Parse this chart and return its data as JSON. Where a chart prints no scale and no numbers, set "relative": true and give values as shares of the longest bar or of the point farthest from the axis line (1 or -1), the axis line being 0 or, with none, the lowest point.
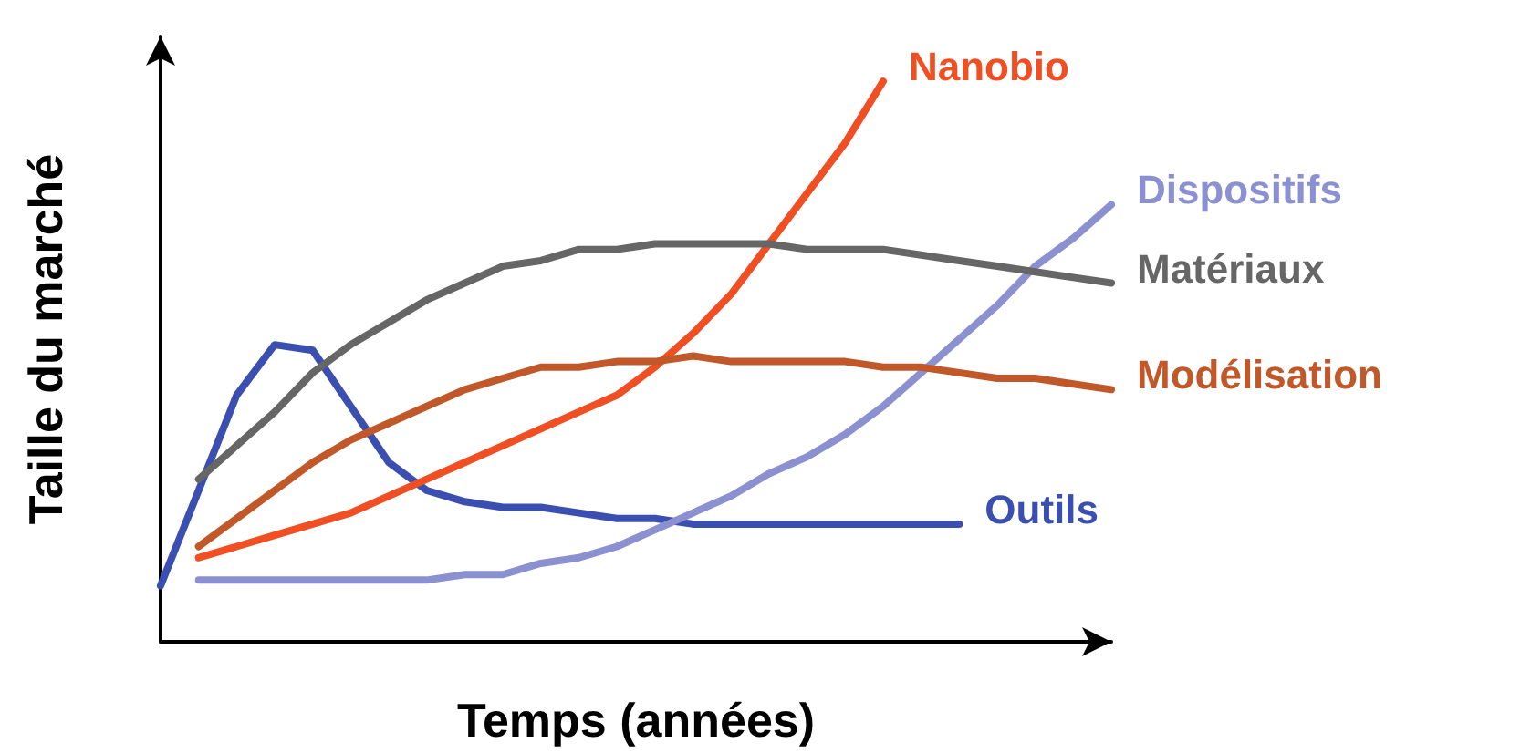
{
  "chart_data": {
    "type": "line",
    "xlabel": "Temps (années)",
    "ylabel": "Taille du marché",
    "relative": true,
    "marker": "none",
    "categories": [
      null,
      null,
      null,
      null,
      null,
      null,
      null,
      null,
      null,
      null,
      null,
      null,
      null,
      null,
      null,
      null,
      null,
      null,
      null,
      null,
      null,
      null,
      null,
      null,
      null,
      null
    ],
    "series": [
      {
        "name": "Outils",
        "color": "#3b4fb0",
        "values": [
          0.1,
          0.27,
          0.44,
          0.53,
          0.52,
          0.42,
          0.32,
          0.27,
          0.25,
          0.24,
          0.24,
          0.23,
          0.22,
          0.22,
          0.21,
          0.21,
          0.21,
          0.21,
          0.21,
          0.21,
          0.21,
          0.21,
          null,
          null,
          null,
          null
        ]
      },
      {
        "name": "Nanobio",
        "color": "#f04e23",
        "values": [
          null,
          0.15,
          0.17,
          0.19,
          0.21,
          0.23,
          0.26,
          0.29,
          0.32,
          0.35,
          0.38,
          0.41,
          0.44,
          0.49,
          0.55,
          0.62,
          0.71,
          0.8,
          0.89,
          1.0,
          null,
          null,
          null,
          null,
          null,
          null
        ]
      },
      {
        "name": "Dispositifs",
        "color": "#8a90d0",
        "values": [
          null,
          0.11,
          0.11,
          0.11,
          0.11,
          0.11,
          0.11,
          0.11,
          0.12,
          0.12,
          0.14,
          0.15,
          0.17,
          0.2,
          0.23,
          0.26,
          0.3,
          0.33,
          0.37,
          0.42,
          0.48,
          0.54,
          0.6,
          0.67,
          0.72,
          0.78
        ]
      },
      {
        "name": "Matériaux",
        "color": "#666666",
        "values": [
          null,
          0.29,
          0.35,
          0.41,
          0.48,
          0.53,
          0.57,
          0.61,
          0.64,
          0.67,
          0.68,
          0.7,
          0.7,
          0.71,
          0.71,
          0.71,
          0.71,
          0.7,
          0.7,
          0.7,
          0.69,
          0.68,
          0.67,
          0.66,
          0.65,
          0.64
        ]
      },
      {
        "name": "Modélisation",
        "color": "#c0582a",
        "values": [
          null,
          0.17,
          0.22,
          0.27,
          0.32,
          0.36,
          0.39,
          0.42,
          0.45,
          0.47,
          0.49,
          0.49,
          0.5,
          0.5,
          0.51,
          0.5,
          0.5,
          0.5,
          0.5,
          0.49,
          0.49,
          0.48,
          0.47,
          0.47,
          0.46,
          0.45
        ]
      }
    ]
  }
}
